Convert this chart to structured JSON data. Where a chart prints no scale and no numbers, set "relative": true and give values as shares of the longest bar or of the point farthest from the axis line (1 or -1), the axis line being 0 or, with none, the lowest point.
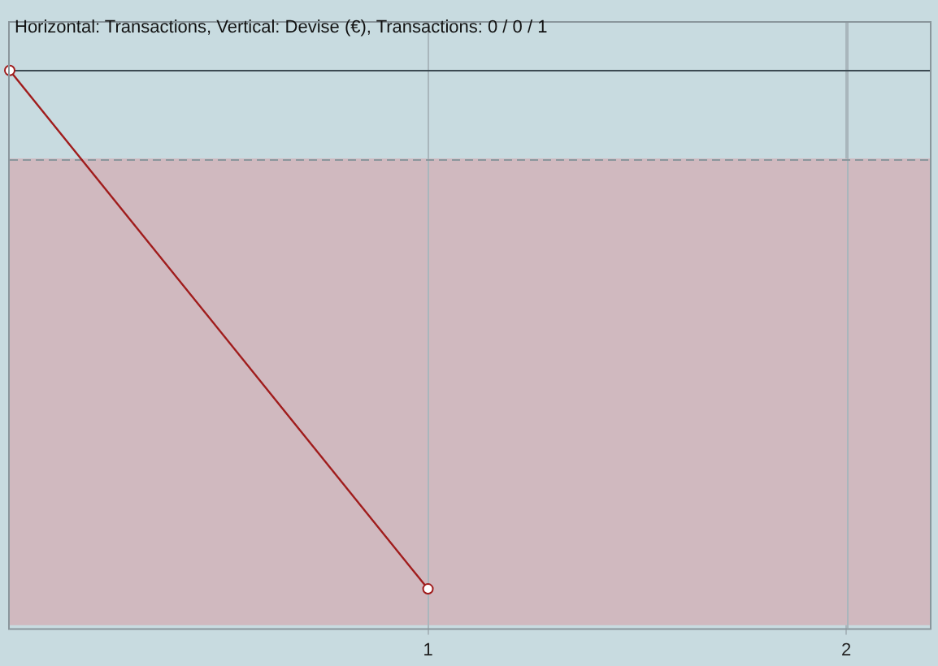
{
  "chart_data": {
    "type": "line",
    "title": "Horizontal: Transactions, Vertical: Devise (€), Transactions: 0 / 0 / 1",
    "relative": true,
    "x": [
      0,
      1
    ],
    "series": [
      {
        "color": "#a01c1c",
        "values": [
          0,
          -1
        ]
      }
    ],
    "xlim": [
      0,
      2.2
    ],
    "xticks": [
      1,
      2
    ],
    "grid": "x",
    "marker": "circle",
    "line_style": "solid",
    "bands": [
      {
        "axis": "y",
        "from": -1.07,
        "to": -0.17,
        "color": "#d0b9bf"
      }
    ],
    "ref_lines": [
      {
        "axis": "y",
        "value": -0.17,
        "color": "#8a969c",
        "line_style": "dashed"
      },
      {
        "axis": "y",
        "value": 0,
        "color": "#3c4a52",
        "line_style": "solid"
      }
    ]
  }
}
